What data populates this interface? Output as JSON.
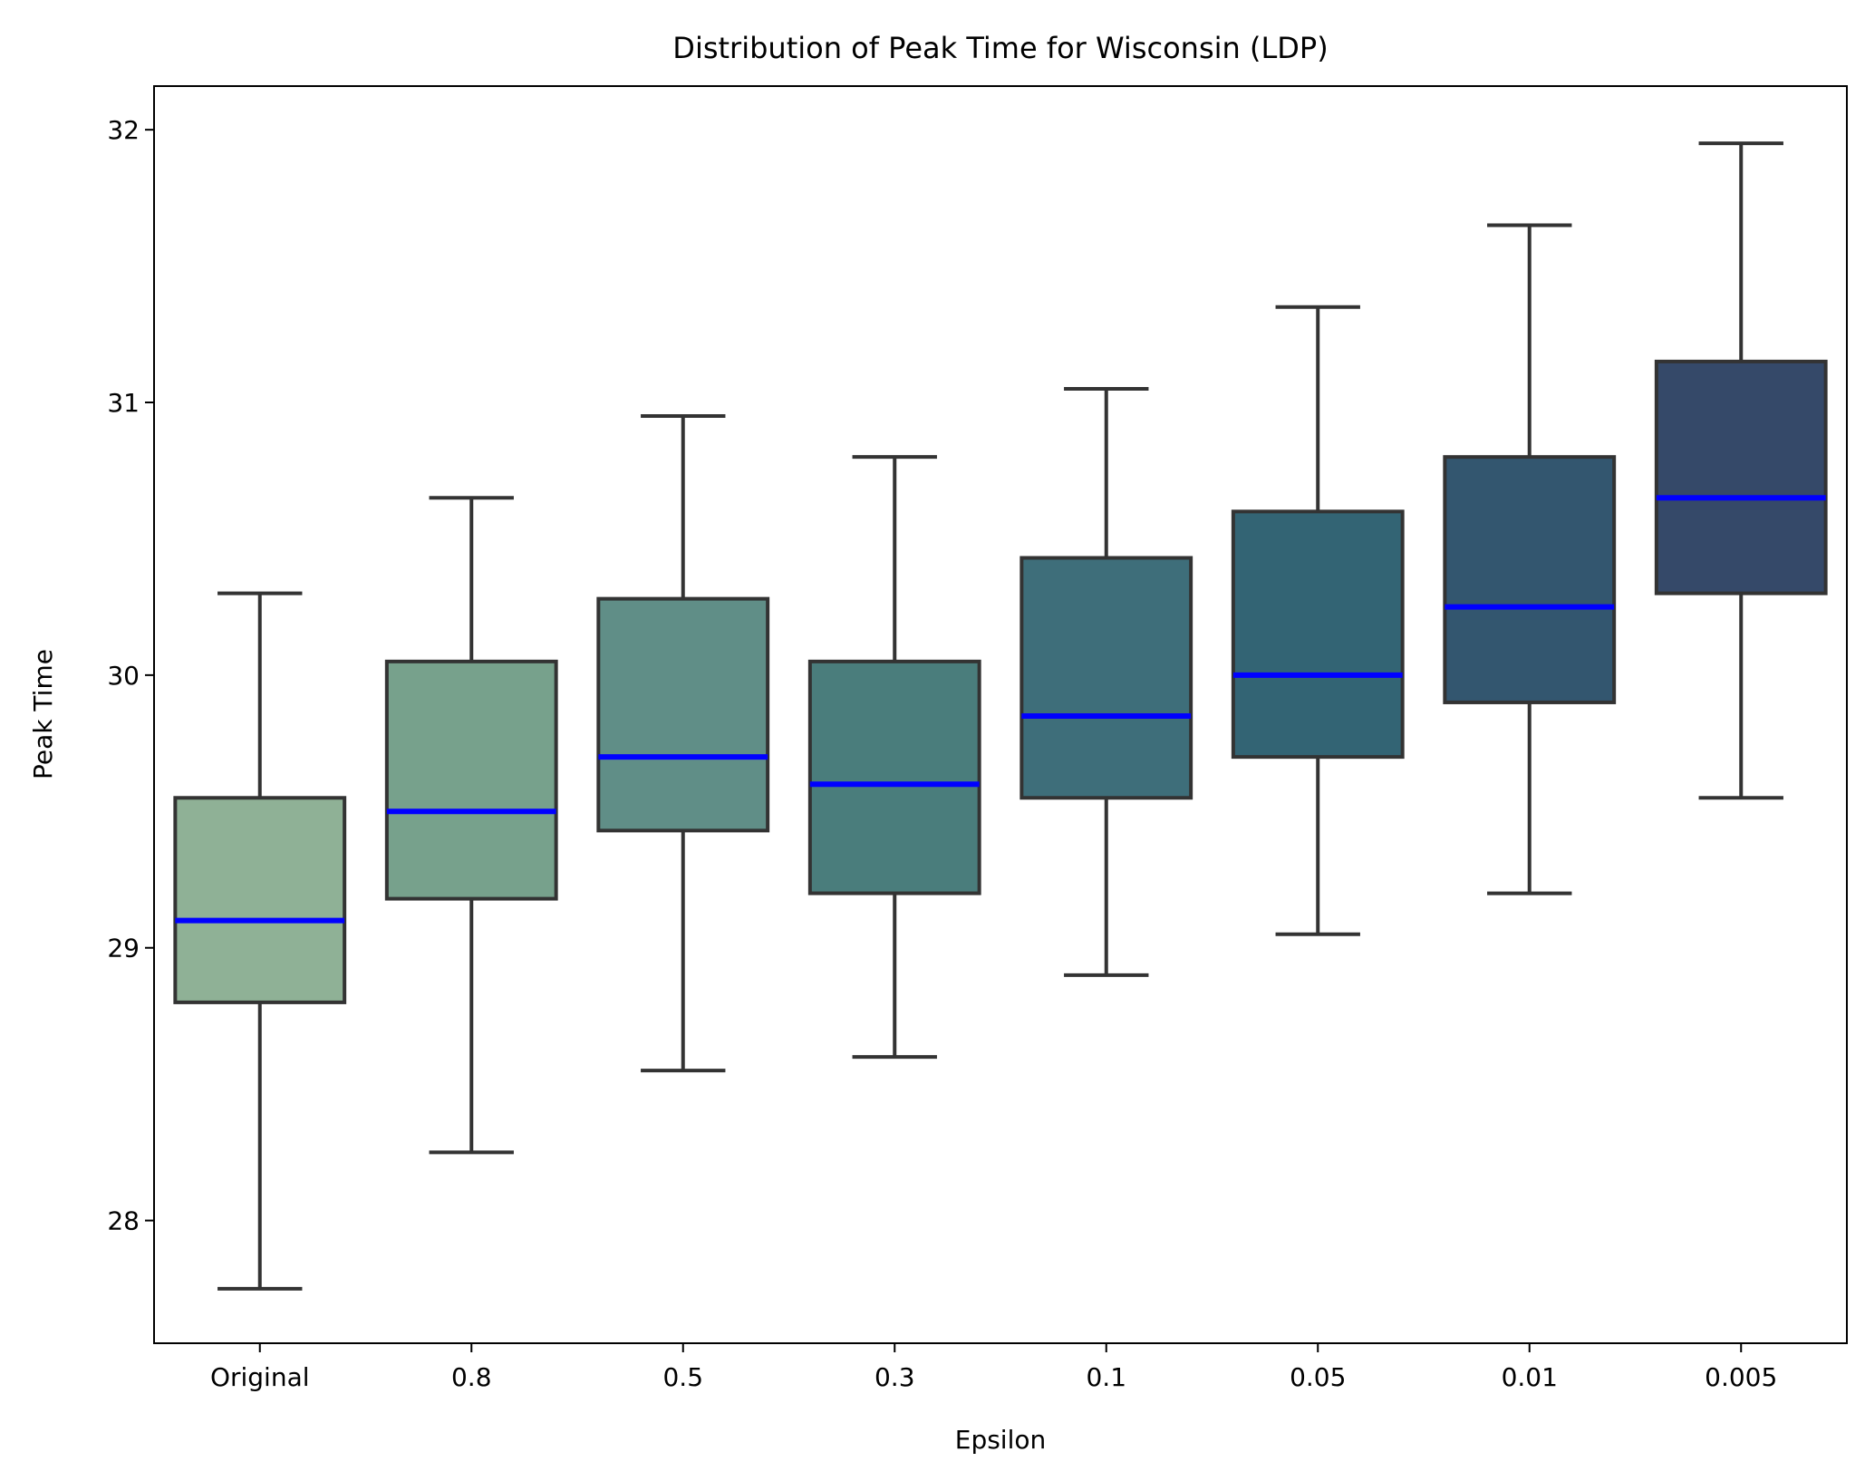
{
  "chart_data": {
    "type": "box",
    "title": "Distribution of Peak Time for Wisconsin (LDP)",
    "xlabel": "Epsilon",
    "ylabel": "Peak Time",
    "ylim": [
      27.55,
      32.16
    ],
    "yticks": [
      28,
      29,
      30,
      31,
      32
    ],
    "ytick_labels": [
      "28",
      "29",
      "30",
      "31",
      "32"
    ],
    "grid": false,
    "median_color": "#0000ff",
    "edge_color": "#333333",
    "categories": [
      "Original",
      "0.8",
      "0.5",
      "0.3",
      "0.1",
      "0.05",
      "0.01",
      "0.005"
    ],
    "boxes": [
      {
        "label": "Original",
        "whisker_low": 27.75,
        "q1": 28.8,
        "median": 29.1,
        "q3": 29.55,
        "whisker_high": 30.3,
        "color": "#8fb196"
      },
      {
        "label": "0.8",
        "whisker_low": 28.25,
        "q1": 29.18,
        "median": 29.5,
        "q3": 30.05,
        "whisker_high": 30.65,
        "color": "#77a18c"
      },
      {
        "label": "0.5",
        "whisker_low": 28.55,
        "q1": 29.43,
        "median": 29.7,
        "q3": 30.28,
        "whisker_high": 30.95,
        "color": "#608e87"
      },
      {
        "label": "0.3",
        "whisker_low": 28.6,
        "q1": 29.2,
        "median": 29.6,
        "q3": 30.05,
        "whisker_high": 30.8,
        "color": "#4a7d7c"
      },
      {
        "label": "0.1",
        "whisker_low": 28.9,
        "q1": 29.55,
        "median": 29.85,
        "q3": 30.43,
        "whisker_high": 31.05,
        "color": "#3e6e7a"
      },
      {
        "label": "0.05",
        "whisker_low": 29.05,
        "q1": 29.7,
        "median": 30.0,
        "q3": 30.6,
        "whisker_high": 31.35,
        "color": "#336474"
      },
      {
        "label": "0.01",
        "whisker_low": 29.2,
        "q1": 29.9,
        "median": 30.25,
        "q3": 30.8,
        "whisker_high": 31.65,
        "color": "#33566f"
      },
      {
        "label": "0.005",
        "whisker_low": 29.55,
        "q1": 30.3,
        "median": 30.65,
        "q3": 31.15,
        "whisker_high": 31.95,
        "color": "#354969"
      }
    ]
  }
}
